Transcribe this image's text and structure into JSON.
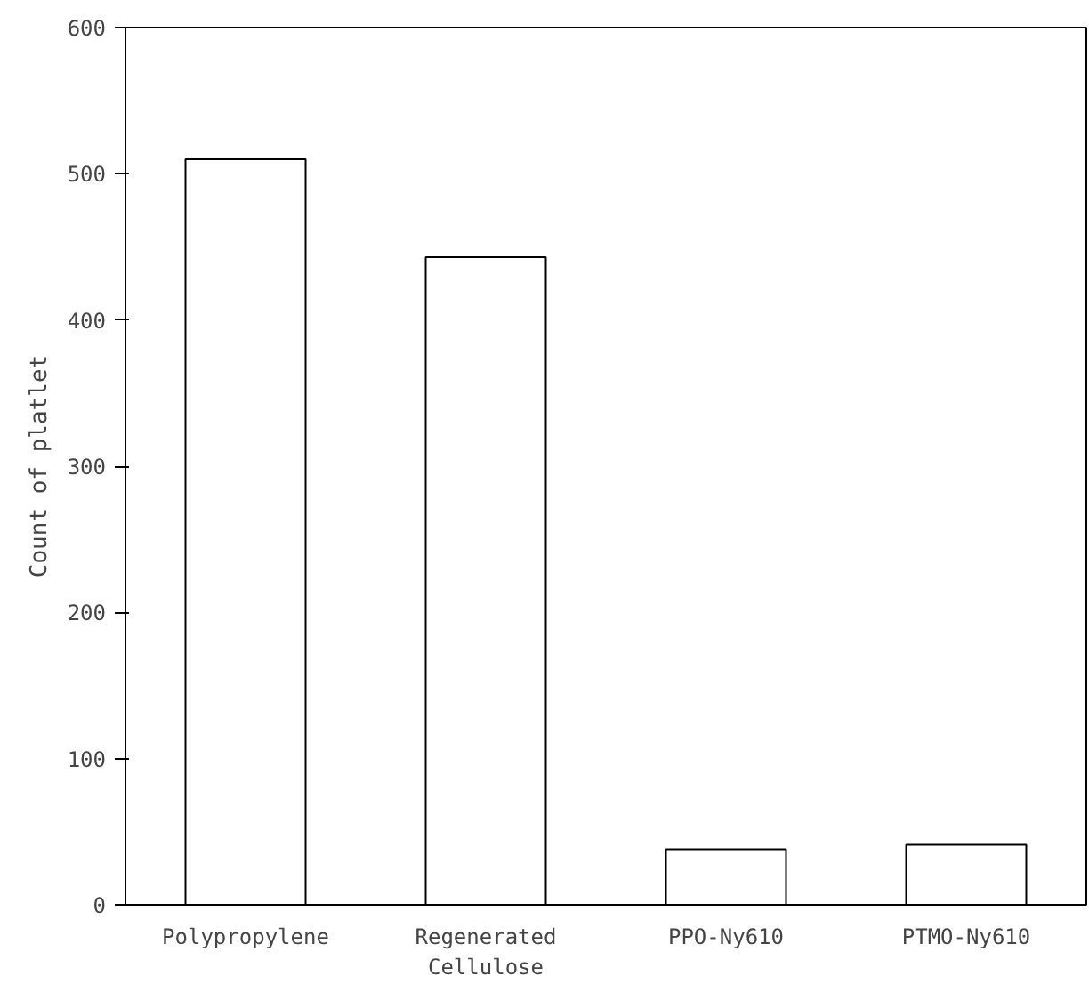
{
  "chart_data": {
    "type": "bar",
    "ylabel": "Count of platlet",
    "categories": [
      "Polypropylene",
      "Regenerated Cellulose",
      "PPO-Ny610",
      "PTMO-Ny610"
    ],
    "values": [
      510,
      443,
      38,
      41
    ],
    "color": "#ffffff",
    "ylim": [
      0,
      600
    ],
    "yticks": [
      0,
      100,
      200,
      300,
      400,
      500,
      600
    ],
    "grid": false
  }
}
